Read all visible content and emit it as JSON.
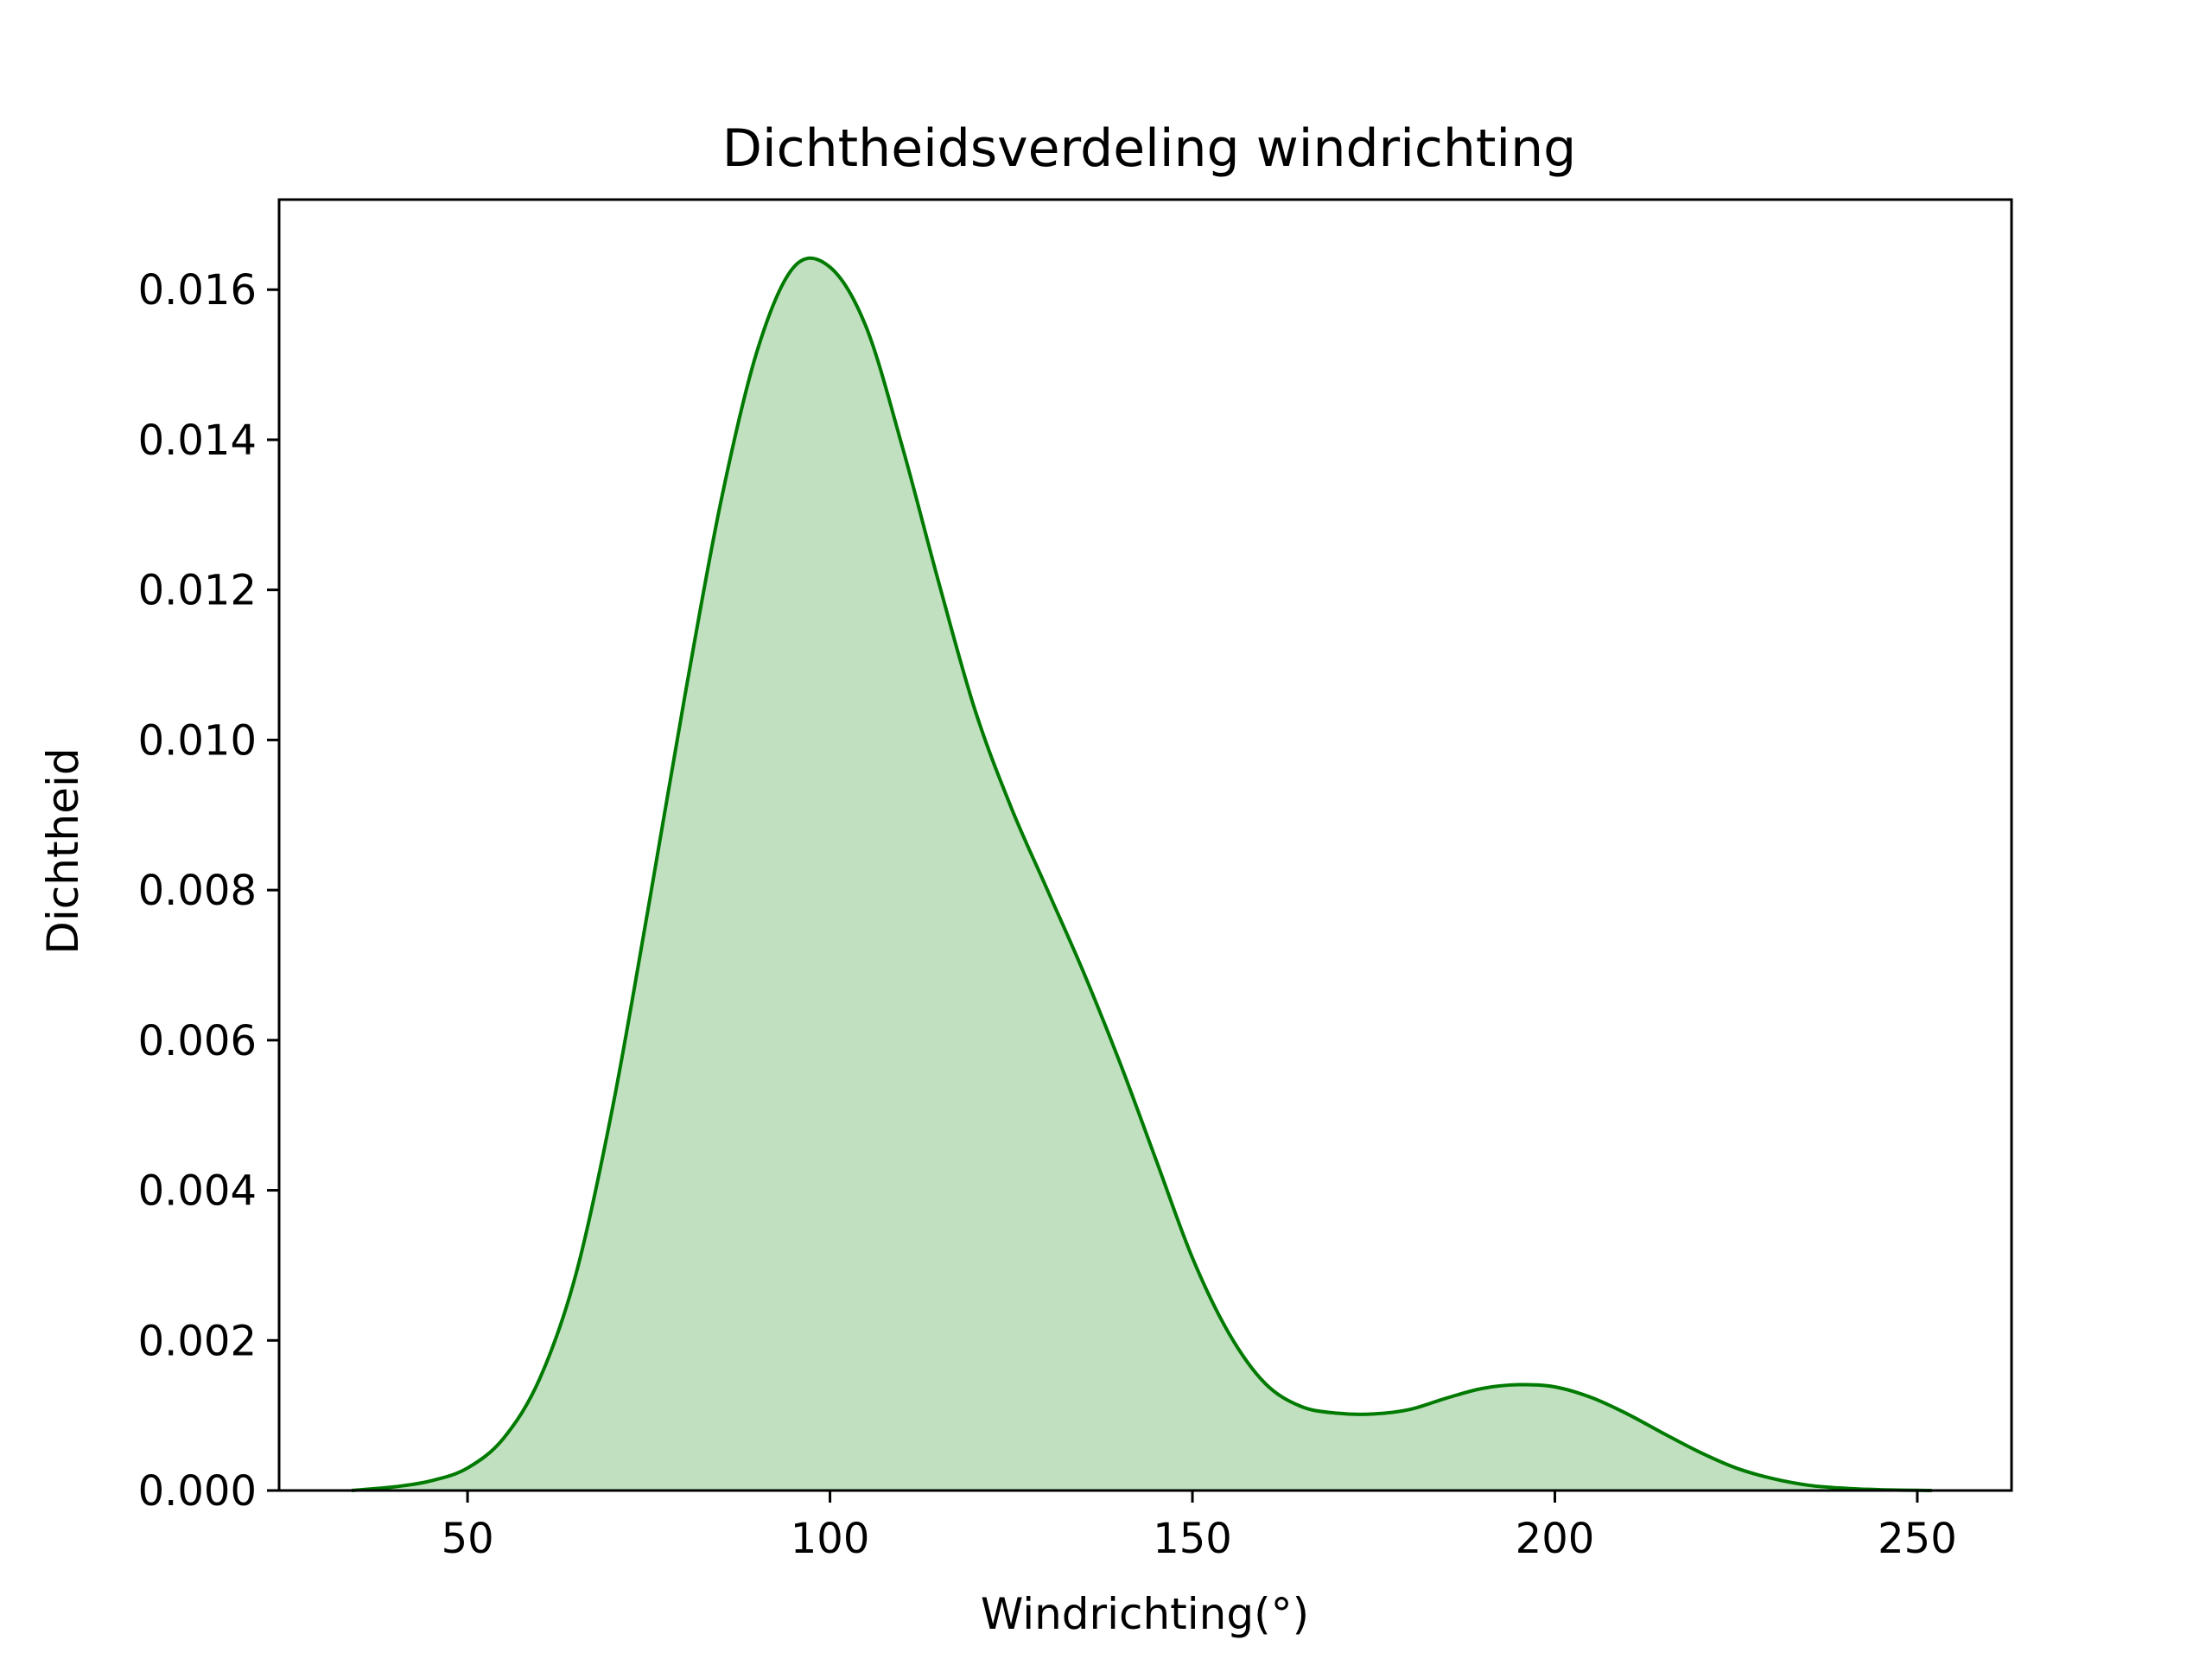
{
  "chart_data": {
    "type": "area",
    "title": "Dichtheidsverdeling windrichting",
    "xlabel": "Windrichting(°)",
    "ylabel": "Dichtheid",
    "xlim": [
      24,
      263
    ],
    "ylim": [
      0,
      0.0172
    ],
    "x_ticks": [
      50,
      100,
      150,
      200,
      250
    ],
    "x_tick_labels": [
      "50",
      "100",
      "150",
      "200",
      "250"
    ],
    "y_ticks": [
      0,
      0.002,
      0.004,
      0.006,
      0.008,
      0.01,
      0.012,
      0.014,
      0.016
    ],
    "y_tick_labels": [
      "0.000",
      "0.002",
      "0.004",
      "0.006",
      "0.008",
      "0.010",
      "0.012",
      "0.014",
      "0.016"
    ],
    "grid": false,
    "legend": "none",
    "colors": {
      "line": "#007a00",
      "fill": "#c0e0c0"
    },
    "series": [
      {
        "x": [
          34,
          40,
          45,
          50,
          55,
          60,
          65,
          70,
          75,
          80,
          85,
          90,
          95,
          100,
          105,
          110,
          115,
          120,
          125,
          130,
          135,
          140,
          145,
          150,
          155,
          160,
          165,
          170,
          175,
          180,
          185,
          190,
          195,
          200,
          205,
          210,
          215,
          220,
          225,
          230,
          235,
          240,
          245,
          252
        ],
        "y": [
          0.0,
          5e-05,
          0.00013,
          0.0003,
          0.0007,
          0.0015,
          0.0029,
          0.0051,
          0.0078,
          0.0106,
          0.0132,
          0.0152,
          0.0163,
          0.0163,
          0.0155,
          0.0139,
          0.0121,
          0.0104,
          0.0091,
          0.008,
          0.0069,
          0.0057,
          0.0044,
          0.0031,
          0.0021,
          0.00143,
          0.00112,
          0.00103,
          0.00102,
          0.00108,
          0.00123,
          0.00136,
          0.00141,
          0.00138,
          0.00124,
          0.00102,
          0.00076,
          0.00051,
          0.0003,
          0.00016,
          7e-05,
          3e-05,
          1e-05,
          0.0
        ]
      }
    ]
  }
}
